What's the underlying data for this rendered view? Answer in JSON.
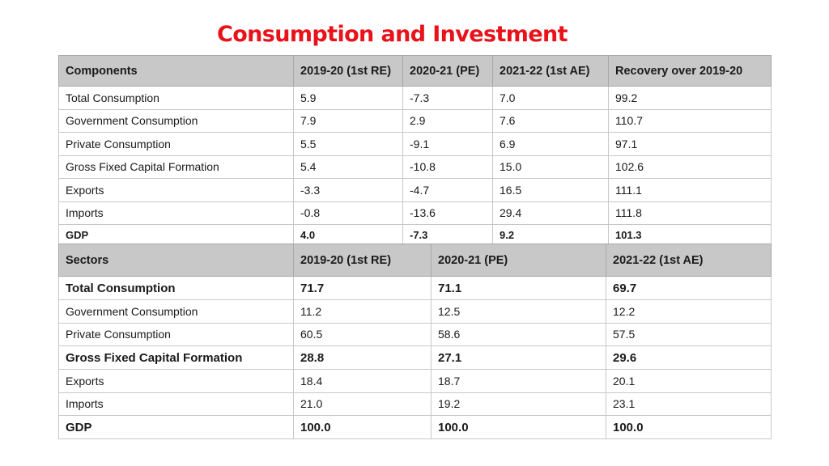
{
  "title": "Consumption and Investment",
  "colors": {
    "title": "#e8121a",
    "header_bg": "#c8c8c8",
    "border": "#c8c8c8"
  },
  "table1": {
    "headers": [
      "Components",
      "2019-20 (1st RE)",
      "2020-21 (PE)",
      "2021-22 (1st AE)",
      "Recovery over 2019-20"
    ],
    "rows": [
      [
        "Total Consumption",
        "5.9",
        "-7.3",
        "7.0",
        "99.2"
      ],
      [
        "Government Consumption",
        "7.9",
        "2.9",
        "7.6",
        "110.7"
      ],
      [
        "Private Consumption",
        "5.5",
        "-9.1",
        "6.9",
        "97.1"
      ],
      [
        "Gross Fixed Capital Formation",
        "5.4",
        "-10.8",
        "15.0",
        "102.6"
      ],
      [
        "Exports",
        "-3.3",
        "-4.7",
        "16.5",
        "111.1"
      ],
      [
        "Imports",
        "-0.8",
        "-13.6",
        "29.4",
        "111.8"
      ],
      [
        "GDP",
        "4.0",
        "-7.3",
        "9.2",
        "101.3"
      ]
    ]
  },
  "table2": {
    "headers": [
      "Sectors",
      "2019-20 (1st RE)",
      "2020-21 (PE)",
      "2021-22 (1st AE)"
    ],
    "rows": [
      [
        "Total Consumption",
        "71.7",
        "71.1",
        "69.7"
      ],
      [
        "Government Consumption",
        "11.2",
        "12.5",
        "12.2"
      ],
      [
        "Private Consumption",
        "60.5",
        "58.6",
        "57.5"
      ],
      [
        "Gross Fixed Capital Formation",
        "28.8",
        "27.1",
        "29.6"
      ],
      [
        "Exports",
        "18.4",
        "18.7",
        "20.1"
      ],
      [
        "Imports",
        "21.0",
        "19.2",
        "23.1"
      ],
      [
        "GDP",
        "100.0",
        "100.0",
        "100.0"
      ]
    ]
  }
}
